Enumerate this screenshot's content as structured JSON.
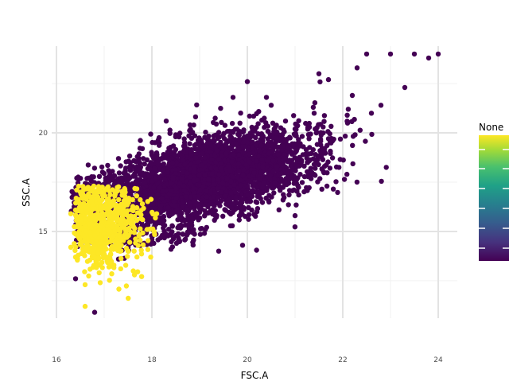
{
  "chart_data": {
    "type": "scatter",
    "xlabel": "FSC.A",
    "ylabel": "SSC.A",
    "xlim": [
      15.9,
      24.4
    ],
    "ylim": [
      10.6,
      24.4
    ],
    "x_ticks": [
      16,
      18,
      20,
      22,
      24
    ],
    "y_ticks": [
      15,
      20
    ],
    "grid": true,
    "legend": {
      "title": "None",
      "type": "colorbar",
      "colormap": "viridis",
      "placement": "right"
    },
    "series": [
      {
        "group": "purple",
        "color": "#440154",
        "shape": "dense diagonal cloud",
        "approx_points": 3000,
        "center": [
          19.3,
          17.9
        ],
        "spread_along_diagonal": 1.35,
        "spread_across_diagonal": 0.8,
        "sample_points": [
          [
            17.0,
            17.3
          ],
          [
            17.5,
            15.5
          ],
          [
            18.0,
            14.6
          ],
          [
            18.4,
            14.1
          ],
          [
            19.1,
            14.9
          ],
          [
            19.4,
            14.0
          ],
          [
            19.9,
            14.3
          ],
          [
            19.7,
            16.4
          ],
          [
            20.2,
            16.0
          ],
          [
            21.0,
            15.8
          ],
          [
            21.0,
            19.0
          ],
          [
            20.4,
            21.8
          ],
          [
            21.4,
            21.0
          ],
          [
            22.1,
            20.5
          ],
          [
            22.6,
            21.0
          ],
          [
            22.8,
            21.4
          ],
          [
            23.3,
            22.3
          ],
          [
            21.7,
            22.7
          ],
          [
            22.3,
            23.3
          ],
          [
            21.5,
            23.0
          ],
          [
            22.5,
            24.0
          ],
          [
            23.0,
            24.0
          ],
          [
            23.5,
            24.0
          ],
          [
            24.0,
            24.0
          ],
          [
            23.8,
            23.8
          ],
          [
            20.0,
            22.6
          ],
          [
            20.5,
            21.4
          ],
          [
            18.5,
            19.9
          ],
          [
            17.3,
            18.7
          ],
          [
            17.8,
            19.2
          ],
          [
            18.8,
            20.4
          ],
          [
            19.7,
            21.8
          ],
          [
            16.4,
            12.6
          ],
          [
            16.8,
            10.9
          ],
          [
            17.3,
            13.6
          ],
          [
            18.3,
            20.6
          ],
          [
            21.4,
            18.4
          ],
          [
            22.2,
            21.9
          ]
        ]
      },
      {
        "group": "yellow",
        "color": "#fde725",
        "shape": "cluster at low FSC",
        "approx_points": 700,
        "center": [
          16.7,
          15.3
        ],
        "sample_points": [
          [
            16.3,
            14.2
          ],
          [
            16.4,
            13.7
          ],
          [
            16.5,
            15.5
          ],
          [
            16.6,
            16.3
          ],
          [
            16.5,
            17.0
          ],
          [
            16.9,
            16.6
          ],
          [
            17.0,
            14.9
          ],
          [
            17.2,
            15.8
          ],
          [
            17.4,
            16.2
          ],
          [
            17.6,
            15.4
          ],
          [
            17.8,
            16.4
          ],
          [
            18.1,
            15.9
          ],
          [
            16.6,
            12.3
          ],
          [
            16.6,
            11.2
          ],
          [
            17.1,
            13.2
          ],
          [
            17.5,
            14.0
          ],
          [
            16.3,
            15.9
          ],
          [
            17.9,
            15.1
          ]
        ]
      }
    ]
  }
}
